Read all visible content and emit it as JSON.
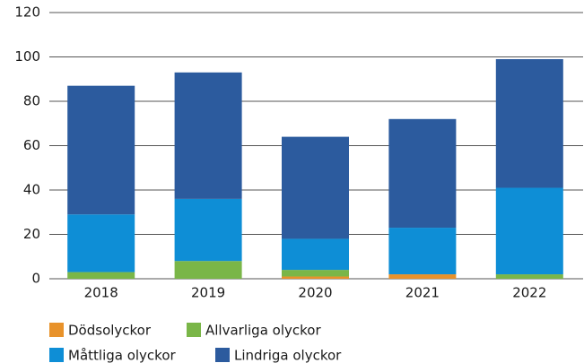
{
  "chart_data": {
    "type": "bar",
    "stacked": true,
    "categories": [
      "2018",
      "2019",
      "2020",
      "2021",
      "2022"
    ],
    "series": [
      {
        "name": "Dödsolyckor",
        "color": "#e8922a",
        "values": [
          0,
          0,
          1,
          2,
          0
        ]
      },
      {
        "name": "Allvarliga olyckor",
        "color": "#7ab648",
        "values": [
          3,
          8,
          3,
          0,
          2
        ]
      },
      {
        "name": "Måttliga olyckor",
        "color": "#0e8ed6",
        "values": [
          26,
          28,
          14,
          21,
          39
        ]
      },
      {
        "name": "Lindriga olyckor",
        "color": "#2c5b9e",
        "values": [
          58,
          57,
          46,
          49,
          58
        ]
      }
    ],
    "ylim": [
      0,
      120
    ],
    "yticks": [
      0,
      20,
      40,
      60,
      80,
      100,
      120
    ],
    "grid": true,
    "legend": "bottom"
  }
}
